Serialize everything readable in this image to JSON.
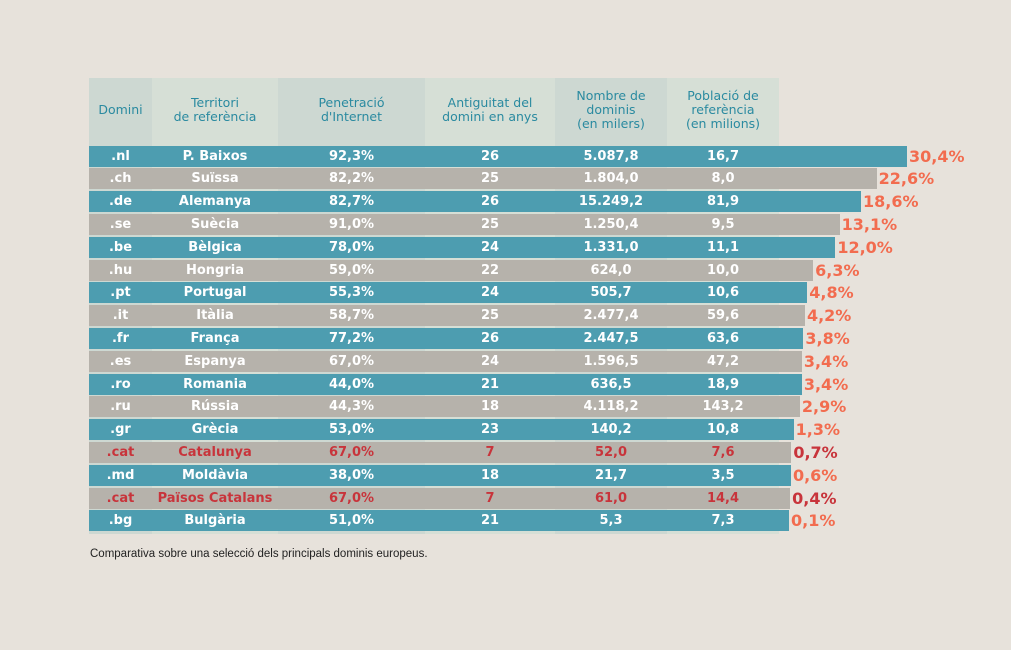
{
  "headers": {
    "domain": "Domini",
    "territory": "Territori\nde referència",
    "penetration": "Penetració\nd'Internet",
    "age": "Antiguitat del\ndomini en anys",
    "count": "Nombre de\ndominis\n(en milers)",
    "population": "Població de\nreferència\n(en milions)"
  },
  "caption": "Comparativa sobre una selecció dels principals dominis europeus.",
  "colors": {
    "teal": "#4d9db0",
    "grey": "#b6b2ab",
    "pct": "#f26c4f",
    "highlight": "#c8343b",
    "header_text": "#2a8aa0"
  },
  "chart_data": {
    "type": "bar",
    "orientation": "horizontal",
    "categories": [
      ".nl",
      ".ch",
      ".de",
      ".se",
      ".be",
      ".hu",
      ".pt",
      ".it",
      ".fr",
      ".es",
      ".ro",
      ".ru",
      ".gr",
      ".cat",
      ".md",
      ".cat",
      ".bg"
    ],
    "values": [
      30.4,
      22.6,
      18.6,
      13.1,
      12.0,
      6.3,
      4.8,
      4.2,
      3.8,
      3.4,
      3.4,
      2.9,
      1.3,
      0.7,
      0.6,
      0.4,
      0.1
    ],
    "rows": [
      {
        "domain": ".nl",
        "territory": "P. Baixos",
        "penetration": "92,3%",
        "age": "26",
        "count": "5.087,8",
        "population": "16,7",
        "pct_label": "30,4%",
        "value": 30.4,
        "highlight": false,
        "stripe": "teal"
      },
      {
        "domain": ".ch",
        "territory": "Suïssa",
        "penetration": "82,2%",
        "age": "25",
        "count": "1.804,0",
        "population": "8,0",
        "pct_label": "22,6%",
        "value": 22.6,
        "highlight": false,
        "stripe": "grey"
      },
      {
        "domain": ".de",
        "territory": "Alemanya",
        "penetration": "82,7%",
        "age": "26",
        "count": "15.249,2",
        "population": "81,9",
        "pct_label": "18,6%",
        "value": 18.6,
        "highlight": false,
        "stripe": "teal"
      },
      {
        "domain": ".se",
        "territory": "Suècia",
        "penetration": "91,0%",
        "age": "25",
        "count": "1.250,4",
        "population": "9,5",
        "pct_label": "13,1%",
        "value": 13.1,
        "highlight": false,
        "stripe": "grey"
      },
      {
        "domain": ".be",
        "territory": "Bèlgica",
        "penetration": "78,0%",
        "age": "24",
        "count": "1.331,0",
        "population": "11,1",
        "pct_label": "12,0%",
        "value": 12.0,
        "highlight": false,
        "stripe": "teal"
      },
      {
        "domain": ".hu",
        "territory": "Hongria",
        "penetration": "59,0%",
        "age": "22",
        "count": "624,0",
        "population": "10,0",
        "pct_label": "6,3%",
        "value": 6.3,
        "highlight": false,
        "stripe": "grey"
      },
      {
        "domain": ".pt",
        "territory": "Portugal",
        "penetration": "55,3%",
        "age": "24",
        "count": "505,7",
        "population": "10,6",
        "pct_label": "4,8%",
        "value": 4.8,
        "highlight": false,
        "stripe": "teal"
      },
      {
        "domain": ".it",
        "territory": "Itàlia",
        "penetration": "58,7%",
        "age": "25",
        "count": "2.477,4",
        "population": "59,6",
        "pct_label": "4,2%",
        "value": 4.2,
        "highlight": false,
        "stripe": "grey"
      },
      {
        "domain": ".fr",
        "territory": "França",
        "penetration": "77,2%",
        "age": "26",
        "count": "2.447,5",
        "population": "63,6",
        "pct_label": "3,8%",
        "value": 3.8,
        "highlight": false,
        "stripe": "teal"
      },
      {
        "domain": ".es",
        "territory": "Espanya",
        "penetration": "67,0%",
        "age": "24",
        "count": "1.596,5",
        "population": "47,2",
        "pct_label": "3,4%",
        "value": 3.4,
        "highlight": false,
        "stripe": "grey"
      },
      {
        "domain": ".ro",
        "territory": "Romania",
        "penetration": "44,0%",
        "age": "21",
        "count": "636,5",
        "population": "18,9",
        "pct_label": "3,4%",
        "value": 3.4,
        "highlight": false,
        "stripe": "teal"
      },
      {
        "domain": ".ru",
        "territory": "Rússia",
        "penetration": "44,3%",
        "age": "18",
        "count": "4.118,2",
        "population": "143,2",
        "pct_label": "2,9%",
        "value": 2.9,
        "highlight": false,
        "stripe": "grey"
      },
      {
        "domain": ".gr",
        "territory": "Grècia",
        "penetration": "53,0%",
        "age": "23",
        "count": "140,2",
        "population": "10,8",
        "pct_label": "1,3%",
        "value": 1.3,
        "highlight": false,
        "stripe": "teal"
      },
      {
        "domain": ".cat",
        "territory": "Catalunya",
        "penetration": "67,0%",
        "age": "7",
        "count": "52,0",
        "population": "7,6",
        "pct_label": "0,7%",
        "value": 0.7,
        "highlight": true,
        "stripe": "grey"
      },
      {
        "domain": ".md",
        "territory": "Moldàvia",
        "penetration": "38,0%",
        "age": "18",
        "count": "21,7",
        "population": "3,5",
        "pct_label": "0,6%",
        "value": 0.6,
        "highlight": false,
        "stripe": "teal"
      },
      {
        "domain": ".cat",
        "territory": "Països Catalans",
        "penetration": "67,0%",
        "age": "7",
        "count": "61,0",
        "population": "14,4",
        "pct_label": "0,4%",
        "value": 0.4,
        "highlight": true,
        "stripe": "grey"
      },
      {
        "domain": ".bg",
        "territory": "Bulgària",
        "penetration": "51,0%",
        "age": "21",
        "count": "5,3",
        "population": "7,3",
        "pct_label": "0,1%",
        "value": 0.1,
        "highlight": false,
        "stripe": "teal"
      }
    ]
  }
}
